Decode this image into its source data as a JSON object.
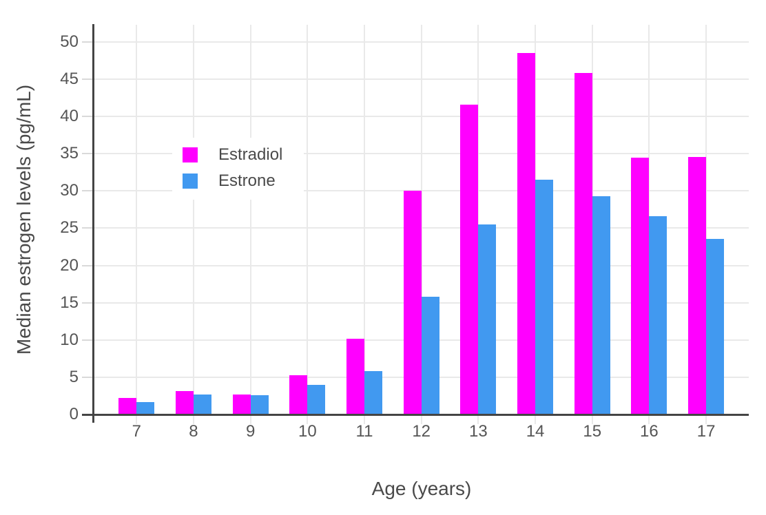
{
  "chart_data": {
    "type": "bar",
    "title": "",
    "xlabel": "Age (years)",
    "ylabel": "Median estrogen levels (pg/mL)",
    "categories": [
      "7",
      "8",
      "9",
      "10",
      "11",
      "12",
      "13",
      "14",
      "15",
      "16",
      "17"
    ],
    "series": [
      {
        "name": "Estradiol",
        "color": "#FF00FF",
        "values": [
          2.2,
          3.1,
          2.7,
          5.3,
          10.2,
          30.0,
          41.6,
          48.5,
          45.8,
          34.5,
          34.6
        ]
      },
      {
        "name": "Estrone",
        "color": "#4199F0",
        "values": [
          1.7,
          2.7,
          2.6,
          4.0,
          5.8,
          15.8,
          25.5,
          31.5,
          29.3,
          26.6,
          23.6
        ]
      }
    ],
    "y_ticks": [
      0,
      5,
      10,
      15,
      20,
      25,
      30,
      35,
      40,
      45,
      50
    ],
    "ylim": [
      0,
      52.3
    ],
    "grid": true,
    "legend_position": "inside-upper-left"
  },
  "styles": {
    "background": "#FFFFFF",
    "grid_color": "#E9E9E9",
    "tick_color": "#D9D9D9",
    "axis_line_color": "#444444",
    "tick_text_color": "#555555",
    "title_text_color": "#4A4A4A"
  }
}
